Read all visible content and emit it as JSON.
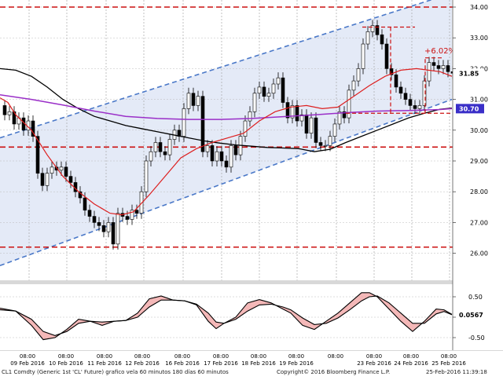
{
  "chart_data": [
    {
      "type": "candlestick",
      "y_axis_ticks": [
        "34.00",
        "33.00",
        "32.00",
        "31.00",
        "30.00",
        "29.00",
        "28.00",
        "27.00",
        "26.00"
      ],
      "ylim": [
        25.5,
        34.2
      ],
      "x_dates": [
        "09 Feb 2016",
        "10 Feb 2016",
        "11 Feb 2016",
        "12 Feb 2016",
        "16 Feb 2016",
        "17 Feb 2016",
        "18 Feb 2016",
        "19 Feb 2016",
        "23 Feb 2016",
        "24 Feb 2016",
        "25 Feb 2016"
      ],
      "x_time_label": "08:00",
      "last_price_label": "31.85",
      "ma_value_label": "30.70",
      "annotation_text": "+6.02%",
      "horizontal_levels": [
        34.0,
        29.45,
        26.2
      ],
      "price_series": [
        [
          0,
          30.8
        ],
        [
          6,
          30.5
        ],
        [
          12,
          30.6
        ],
        [
          18,
          30.2
        ],
        [
          24,
          30.4
        ],
        [
          30,
          30.0
        ],
        [
          36,
          30.3
        ],
        [
          42,
          29.8
        ],
        [
          48,
          28.6
        ],
        [
          54,
          28.2
        ],
        [
          60,
          28.6
        ],
        [
          66,
          28.8
        ],
        [
          72,
          28.7
        ],
        [
          78,
          28.8
        ],
        [
          84,
          28.5
        ],
        [
          90,
          28.3
        ],
        [
          96,
          28.0
        ],
        [
          102,
          27.8
        ],
        [
          108,
          27.4
        ],
        [
          114,
          27.2
        ],
        [
          120,
          27.0
        ],
        [
          126,
          26.9
        ],
        [
          132,
          26.7
        ],
        [
          138,
          27.0
        ],
        [
          144,
          26.3
        ],
        [
          150,
          27.3
        ],
        [
          156,
          27.2
        ],
        [
          162,
          27.1
        ],
        [
          168,
          27.4
        ],
        [
          174,
          27.3
        ],
        [
          180,
          28.0
        ],
        [
          186,
          29.0
        ],
        [
          192,
          29.3
        ],
        [
          198,
          29.6
        ],
        [
          204,
          29.3
        ],
        [
          210,
          29.2
        ],
        [
          216,
          29.7
        ],
        [
          222,
          30.0
        ],
        [
          228,
          29.8
        ],
        [
          234,
          30.7
        ],
        [
          240,
          31.2
        ],
        [
          246,
          30.8
        ],
        [
          252,
          31.1
        ],
        [
          258,
          29.3
        ],
        [
          264,
          29.5
        ],
        [
          270,
          29.0
        ],
        [
          276,
          29.3
        ],
        [
          282,
          29.0
        ],
        [
          288,
          28.8
        ],
        [
          294,
          29.5
        ],
        [
          300,
          29.2
        ],
        [
          306,
          29.8
        ],
        [
          312,
          30.3
        ],
        [
          318,
          30.6
        ],
        [
          324,
          31.2
        ],
        [
          330,
          31.4
        ],
        [
          336,
          31.1
        ],
        [
          342,
          31.2
        ],
        [
          348,
          31.5
        ],
        [
          354,
          31.7
        ],
        [
          360,
          30.9
        ],
        [
          366,
          30.4
        ],
        [
          372,
          30.8
        ],
        [
          378,
          30.3
        ],
        [
          384,
          30.5
        ],
        [
          390,
          29.9
        ],
        [
          396,
          30.4
        ],
        [
          402,
          29.6
        ],
        [
          408,
          29.5
        ],
        [
          414,
          29.5
        ],
        [
          420,
          29.8
        ],
        [
          426,
          30.2
        ],
        [
          432,
          30.6
        ],
        [
          438,
          30.4
        ],
        [
          444,
          31.3
        ],
        [
          450,
          31.6
        ],
        [
          456,
          32.0
        ],
        [
          462,
          32.8
        ],
        [
          468,
          33.2
        ],
        [
          474,
          33.4
        ],
        [
          480,
          33.1
        ],
        [
          486,
          32.8
        ],
        [
          492,
          32.0
        ],
        [
          498,
          31.8
        ],
        [
          504,
          31.4
        ],
        [
          510,
          31.2
        ],
        [
          516,
          31.0
        ],
        [
          522,
          30.8
        ],
        [
          528,
          30.7
        ],
        [
          534,
          30.8
        ],
        [
          540,
          31.6
        ],
        [
          546,
          32.2
        ],
        [
          552,
          32.1
        ],
        [
          558,
          32.0
        ],
        [
          564,
          32.1
        ],
        [
          570,
          31.9
        ],
        [
          576,
          31.85
        ]
      ],
      "red_ma": [
        [
          0,
          31.05
        ],
        [
          10,
          30.9
        ],
        [
          20,
          30.5
        ],
        [
          40,
          30.0
        ],
        [
          60,
          29.2
        ],
        [
          80,
          28.5
        ],
        [
          100,
          28.0
        ],
        [
          120,
          27.6
        ],
        [
          140,
          27.3
        ],
        [
          155,
          27.25
        ],
        [
          170,
          27.35
        ],
        [
          190,
          27.9
        ],
        [
          210,
          28.5
        ],
        [
          230,
          29.1
        ],
        [
          250,
          29.4
        ],
        [
          270,
          29.6
        ],
        [
          290,
          29.75
        ],
        [
          310,
          29.9
        ],
        [
          330,
          30.3
        ],
        [
          350,
          30.6
        ],
        [
          370,
          30.75
        ],
        [
          390,
          30.8
        ],
        [
          410,
          30.7
        ],
        [
          430,
          30.75
        ],
        [
          450,
          31.1
        ],
        [
          470,
          31.45
        ],
        [
          490,
          31.75
        ],
        [
          510,
          31.95
        ],
        [
          530,
          32.0
        ],
        [
          545,
          31.95
        ],
        [
          560,
          31.9
        ],
        [
          575,
          31.75
        ]
      ],
      "black_ma": [
        [
          0,
          32.0
        ],
        [
          20,
          31.95
        ],
        [
          40,
          31.75
        ],
        [
          60,
          31.4
        ],
        [
          80,
          31.0
        ],
        [
          100,
          30.7
        ],
        [
          120,
          30.45
        ],
        [
          140,
          30.3
        ],
        [
          160,
          30.15
        ],
        [
          180,
          30.05
        ],
        [
          200,
          29.95
        ],
        [
          220,
          29.85
        ],
        [
          240,
          29.75
        ],
        [
          260,
          29.65
        ],
        [
          280,
          29.58
        ],
        [
          300,
          29.52
        ],
        [
          320,
          29.48
        ],
        [
          340,
          29.44
        ],
        [
          360,
          29.42
        ],
        [
          380,
          29.4
        ],
        [
          400,
          29.3
        ],
        [
          420,
          29.38
        ],
        [
          440,
          29.6
        ],
        [
          460,
          29.8
        ],
        [
          480,
          30.0
        ],
        [
          500,
          30.2
        ],
        [
          520,
          30.4
        ],
        [
          540,
          30.55
        ],
        [
          560,
          30.68
        ],
        [
          575,
          30.72
        ]
      ],
      "purple_ma": [
        [
          0,
          31.15
        ],
        [
          40,
          31.0
        ],
        [
          80,
          30.82
        ],
        [
          120,
          30.62
        ],
        [
          160,
          30.45
        ],
        [
          200,
          30.38
        ],
        [
          240,
          30.35
        ],
        [
          280,
          30.35
        ],
        [
          320,
          30.38
        ],
        [
          360,
          30.44
        ],
        [
          400,
          30.5
        ],
        [
          440,
          30.57
        ],
        [
          480,
          30.62
        ],
        [
          520,
          30.64
        ],
        [
          560,
          30.67
        ],
        [
          575,
          30.7
        ]
      ],
      "channel_upper": [
        [
          0,
          29.75
        ],
        [
          575,
          34.45
        ]
      ],
      "channel_lower": [
        [
          0,
          25.6
        ],
        [
          575,
          31.0
        ]
      ]
    },
    {
      "type": "line",
      "y_axis_ticks": [
        "0.50",
        "0.00",
        "-0.50"
      ],
      "ylim": [
        -0.7,
        0.7
      ],
      "current_value_label": "0.0567",
      "series": [
        {
          "color": "#000000",
          "points": [
            [
              0,
              0.22
            ],
            [
              20,
              0.15
            ],
            [
              40,
              -0.2
            ],
            [
              55,
              -0.55
            ],
            [
              70,
              -0.5
            ],
            [
              85,
              -0.3
            ],
            [
              100,
              -0.05
            ],
            [
              115,
              -0.1
            ],
            [
              130,
              -0.2
            ],
            [
              145,
              -0.1
            ],
            [
              160,
              -0.08
            ],
            [
              175,
              0.1
            ],
            [
              190,
              0.45
            ],
            [
              205,
              0.52
            ],
            [
              220,
              0.42
            ],
            [
              235,
              0.4
            ],
            [
              250,
              0.3
            ],
            [
              265,
              -0.1
            ],
            [
              275,
              -0.28
            ],
            [
              285,
              -0.15
            ],
            [
              300,
              0.0
            ],
            [
              315,
              0.35
            ],
            [
              330,
              0.43
            ],
            [
              345,
              0.35
            ],
            [
              360,
              0.2
            ],
            [
              370,
              0.1
            ],
            [
              385,
              -0.2
            ],
            [
              400,
              -0.3
            ],
            [
              415,
              -0.1
            ],
            [
              430,
              0.1
            ],
            [
              445,
              0.35
            ],
            [
              460,
              0.6
            ],
            [
              470,
              0.6
            ],
            [
              480,
              0.5
            ],
            [
              495,
              0.2
            ],
            [
              510,
              -0.1
            ],
            [
              525,
              -0.35
            ],
            [
              540,
              -0.1
            ],
            [
              555,
              0.2
            ],
            [
              565,
              0.18
            ],
            [
              575,
              0.07
            ]
          ]
        },
        {
          "color": "#000000",
          "points": [
            [
              0,
              0.18
            ],
            [
              20,
              0.15
            ],
            [
              40,
              -0.05
            ],
            [
              55,
              -0.35
            ],
            [
              70,
              -0.45
            ],
            [
              85,
              -0.35
            ],
            [
              100,
              -0.15
            ],
            [
              115,
              -0.1
            ],
            [
              130,
              -0.12
            ],
            [
              145,
              -0.1
            ],
            [
              160,
              -0.08
            ],
            [
              175,
              0.0
            ],
            [
              190,
              0.25
            ],
            [
              205,
              0.42
            ],
            [
              220,
              0.42
            ],
            [
              235,
              0.4
            ],
            [
              250,
              0.32
            ],
            [
              265,
              0.1
            ],
            [
              275,
              -0.12
            ],
            [
              285,
              -0.15
            ],
            [
              300,
              -0.05
            ],
            [
              315,
              0.15
            ],
            [
              330,
              0.3
            ],
            [
              345,
              0.32
            ],
            [
              360,
              0.25
            ],
            [
              370,
              0.18
            ],
            [
              385,
              -0.02
            ],
            [
              400,
              -0.18
            ],
            [
              415,
              -0.15
            ],
            [
              430,
              -0.02
            ],
            [
              445,
              0.18
            ],
            [
              460,
              0.4
            ],
            [
              470,
              0.5
            ],
            [
              480,
              0.52
            ],
            [
              495,
              0.35
            ],
            [
              510,
              0.1
            ],
            [
              525,
              -0.15
            ],
            [
              540,
              -0.15
            ],
            [
              555,
              0.08
            ],
            [
              565,
              0.14
            ],
            [
              575,
              0.06
            ]
          ]
        }
      ]
    }
  ],
  "footer": {
    "left": "CL1 Comdty (Generic 1st 'CL' Future) grafico vela 60 minutos 180 días 60 minutos",
    "center": "Copyright© 2016 Bloomberg Finance L.P.",
    "right": "25-Feb-2016 11:39:18"
  }
}
